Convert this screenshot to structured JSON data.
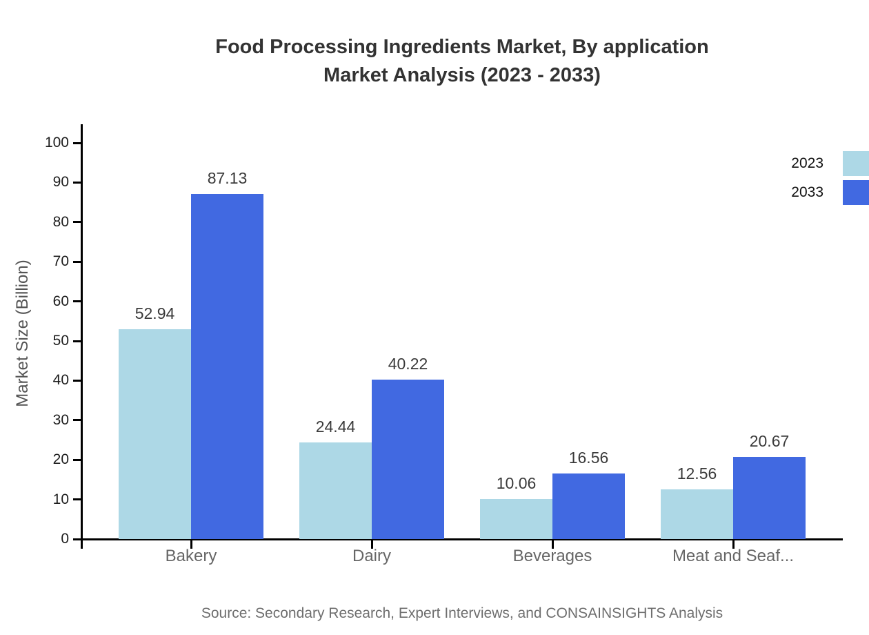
{
  "title": {
    "line1": "Food Processing Ingredients Market, By application",
    "line2": "Market Analysis (2023 - 2033)"
  },
  "source_note": "Source: Secondary Research, Expert Interviews, and CONSAINSIGHTS Analysis",
  "chart_data": {
    "type": "bar",
    "title": "Food Processing Ingredients Market, By application Market Analysis (2023 - 2033)",
    "categories": [
      "Bakery",
      "Dairy",
      "Beverages",
      "Meat and Seaf..."
    ],
    "series": [
      {
        "name": "2023",
        "color": "#ADD8E6",
        "values": [
          52.94,
          24.44,
          10.06,
          12.56
        ]
      },
      {
        "name": "2033",
        "color": "#4169E1",
        "values": [
          87.13,
          40.22,
          16.56,
          20.67
        ]
      }
    ],
    "xlabel": "",
    "ylabel": "Market Size (Billion)",
    "ylim": [
      0,
      100
    ],
    "yticks": [
      0,
      10,
      20,
      30,
      40,
      50,
      60,
      70,
      80,
      90,
      100
    ],
    "grid": false,
    "legend_position": "top-right",
    "value_labels": true,
    "axis_color": "#000000"
  }
}
